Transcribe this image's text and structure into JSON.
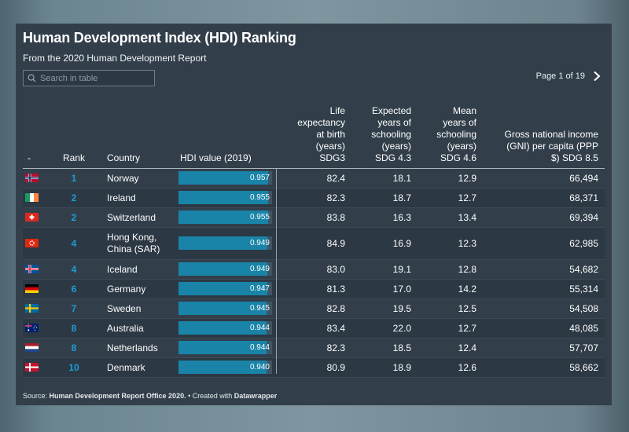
{
  "header": {
    "title": "Human Development Index (HDI) Ranking",
    "subtitle": "From the 2020 Human Development Report"
  },
  "search": {
    "placeholder": "Search in table",
    "icon": "search-icon"
  },
  "pager": {
    "label": "Page 1 of 19",
    "next_icon": "chevron-right-icon"
  },
  "table": {
    "columns": {
      "flag": "-",
      "rank": "Rank",
      "country": "Country",
      "hdi": "HDI value (2019)",
      "life": [
        "Life",
        "expectancy",
        "at birth",
        "(years)",
        "SDG3"
      ],
      "expected": [
        "Expected",
        "years of",
        "schooling",
        "(years)",
        "SDG 4.3"
      ],
      "mean": [
        "Mean",
        "years of",
        "schooling",
        "(years)",
        "SDG 4.6"
      ],
      "gni": [
        "Gross national income",
        "(GNI) per capita (PPP",
        "$) SDG 8.5"
      ]
    },
    "hdi_scale_max": 1.0,
    "rows": [
      {
        "flag": "norway",
        "rank": "1",
        "country": [
          "Norway"
        ],
        "hdi": 0.957,
        "hdi_label": "0.957",
        "life": "82.4",
        "expected": "18.1",
        "mean": "12.9",
        "gni": "66,494"
      },
      {
        "flag": "ireland",
        "rank": "2",
        "country": [
          "Ireland"
        ],
        "hdi": 0.955,
        "hdi_label": "0.955",
        "life": "82.3",
        "expected": "18.7",
        "mean": "12.7",
        "gni": "68,371"
      },
      {
        "flag": "switzerland",
        "rank": "2",
        "country": [
          "Switzerland"
        ],
        "hdi": 0.955,
        "hdi_label": "0.955",
        "life": "83.8",
        "expected": "16.3",
        "mean": "13.4",
        "gni": "69,394"
      },
      {
        "flag": "hongkong",
        "rank": "4",
        "country": [
          "Hong Kong,",
          "China (SAR)"
        ],
        "hdi": 0.949,
        "hdi_label": "0.949",
        "life": "84.9",
        "expected": "16.9",
        "mean": "12.3",
        "gni": "62,985"
      },
      {
        "flag": "iceland",
        "rank": "4",
        "country": [
          "Iceland"
        ],
        "hdi": 0.949,
        "hdi_label": "0.949",
        "life": "83.0",
        "expected": "19.1",
        "mean": "12.8",
        "gni": "54,682"
      },
      {
        "flag": "germany",
        "rank": "6",
        "country": [
          "Germany"
        ],
        "hdi": 0.947,
        "hdi_label": "0.947",
        "life": "81.3",
        "expected": "17.0",
        "mean": "14.2",
        "gni": "55,314"
      },
      {
        "flag": "sweden",
        "rank": "7",
        "country": [
          "Sweden"
        ],
        "hdi": 0.945,
        "hdi_label": "0.945",
        "life": "82.8",
        "expected": "19.5",
        "mean": "12.5",
        "gni": "54,508"
      },
      {
        "flag": "australia",
        "rank": "8",
        "country": [
          "Australia"
        ],
        "hdi": 0.944,
        "hdi_label": "0.944",
        "life": "83.4",
        "expected": "22.0",
        "mean": "12.7",
        "gni": "48,085"
      },
      {
        "flag": "netherlands",
        "rank": "8",
        "country": [
          "Netherlands"
        ],
        "hdi": 0.944,
        "hdi_label": "0.944",
        "life": "82.3",
        "expected": "18.5",
        "mean": "12.4",
        "gni": "57,707"
      },
      {
        "flag": "denmark",
        "rank": "10",
        "country": [
          "Denmark"
        ],
        "hdi": 0.94,
        "hdi_label": "0.940",
        "life": "80.9",
        "expected": "18.9",
        "mean": "12.6",
        "gni": "58,662"
      }
    ]
  },
  "footer": {
    "source_prefix": "Source: ",
    "source_name": "Human Development Report Office 2020.",
    "created_prefix": " • Created with ",
    "created_tool": "Datawrapper"
  },
  "colors": {
    "background": "#323f4b",
    "rank_text": "#1e9dd6",
    "bar_fill": "#1984a8",
    "bar_track": "#3d5564"
  }
}
